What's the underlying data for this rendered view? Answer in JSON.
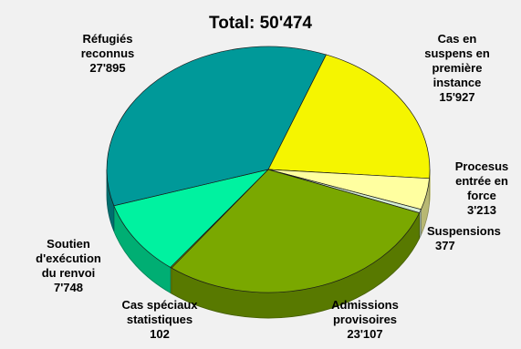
{
  "chart_data": {
    "type": "pie",
    "title": "Total: 50'474",
    "slices": [
      {
        "label": "Cas en\nsuspens en\npremière\ninstance",
        "value_label": "15'927",
        "value": 15927,
        "color": "#f5f500"
      },
      {
        "label": "Procesus\nentrée en\nforce",
        "value_label": "3'213",
        "value": 3213,
        "color": "#ffffa0"
      },
      {
        "label": "Suspensions",
        "value_label": "377",
        "value": 377,
        "color": "#d4ecd4"
      },
      {
        "label": "Admissions\nprovisoires",
        "value_label": "23'107",
        "value": 23107,
        "color": "#7aa800"
      },
      {
        "label": "Cas spéciaux\nstatistiques",
        "value_label": "102",
        "value": 102,
        "color": "#9fb800"
      },
      {
        "label": "Soutien\nd'exécution\ndu renvoi",
        "value_label": "7'748",
        "value": 7748,
        "color": "#00f2a0"
      },
      {
        "label": "Réfugiés\nreconnus",
        "value_label": "27'895",
        "value": 27895,
        "color": "#009999"
      }
    ]
  }
}
